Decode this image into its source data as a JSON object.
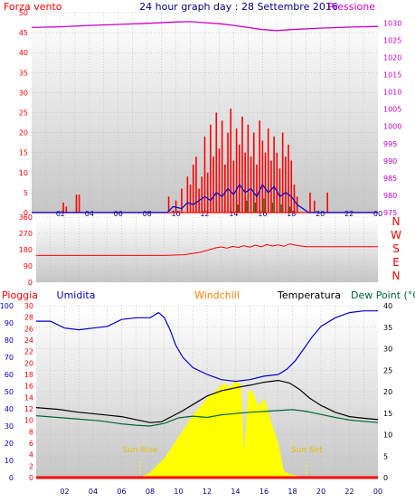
{
  "page_title": "24 hour graph day : 28 Settembre 2016",
  "chart_data": [
    {
      "id": "wind",
      "type": "bar+line",
      "title": "24 hour graph day : 28 Settembre 2016",
      "left_label": "Forza vento",
      "right_label": "Pressione",
      "left_axis": {
        "ticks": [
          0,
          5,
          10,
          15,
          20,
          25,
          30,
          35,
          40,
          45,
          50
        ],
        "ylim": [
          0,
          50
        ]
      },
      "right_axis": {
        "ticks": [
          975,
          980,
          985,
          990,
          995,
          1000,
          1005,
          1010,
          1015,
          1020,
          1025,
          1030
        ],
        "ylim": [
          975,
          1033
        ]
      },
      "x_ticks": [
        "02",
        "04",
        "06",
        "08",
        "10",
        "12",
        "14",
        "16",
        "18",
        "20",
        "22",
        "00"
      ],
      "colors": {
        "gust": "#ff0000",
        "average": "#0000cc",
        "pressure": "#cc00cc",
        "calm": "#008000"
      },
      "gust_bars": [
        {
          "t": 2.2,
          "v": 2.5
        },
        {
          "t": 2.4,
          "v": 1.5
        },
        {
          "t": 3.1,
          "v": 4.5
        },
        {
          "t": 3.3,
          "v": 4.5
        },
        {
          "t": 9.5,
          "v": 4
        },
        {
          "t": 10.0,
          "v": 3
        },
        {
          "t": 10.4,
          "v": 6
        },
        {
          "t": 10.8,
          "v": 9
        },
        {
          "t": 11.0,
          "v": 7
        },
        {
          "t": 11.2,
          "v": 12
        },
        {
          "t": 11.4,
          "v": 14
        },
        {
          "t": 11.6,
          "v": 6
        },
        {
          "t": 11.8,
          "v": 9
        },
        {
          "t": 12.0,
          "v": 19
        },
        {
          "t": 12.2,
          "v": 10
        },
        {
          "t": 12.4,
          "v": 22
        },
        {
          "t": 12.6,
          "v": 14
        },
        {
          "t": 12.8,
          "v": 25
        },
        {
          "t": 13.0,
          "v": 16
        },
        {
          "t": 13.2,
          "v": 23
        },
        {
          "t": 13.4,
          "v": 12
        },
        {
          "t": 13.6,
          "v": 20
        },
        {
          "t": 13.8,
          "v": 26
        },
        {
          "t": 14.0,
          "v": 13
        },
        {
          "t": 14.2,
          "v": 21
        },
        {
          "t": 14.4,
          "v": 17
        },
        {
          "t": 14.6,
          "v": 24
        },
        {
          "t": 14.8,
          "v": 15
        },
        {
          "t": 15.0,
          "v": 22
        },
        {
          "t": 15.2,
          "v": 14
        },
        {
          "t": 15.4,
          "v": 20
        },
        {
          "t": 15.6,
          "v": 12
        },
        {
          "t": 15.8,
          "v": 23
        },
        {
          "t": 16.0,
          "v": 18
        },
        {
          "t": 16.2,
          "v": 15
        },
        {
          "t": 16.4,
          "v": 21
        },
        {
          "t": 16.6,
          "v": 13
        },
        {
          "t": 16.8,
          "v": 19
        },
        {
          "t": 17.0,
          "v": 15
        },
        {
          "t": 17.2,
          "v": 11
        },
        {
          "t": 17.4,
          "v": 20
        },
        {
          "t": 17.6,
          "v": 14
        },
        {
          "t": 17.8,
          "v": 17
        },
        {
          "t": 18.0,
          "v": 13
        },
        {
          "t": 18.2,
          "v": 7
        },
        {
          "t": 18.4,
          "v": 4
        },
        {
          "t": 19.3,
          "v": 5
        },
        {
          "t": 19.6,
          "v": 3
        },
        {
          "t": 20.5,
          "v": 5
        }
      ],
      "average_line": [
        [
          0,
          0
        ],
        [
          9.4,
          0
        ],
        [
          9.8,
          1.5
        ],
        [
          10.4,
          1
        ],
        [
          10.8,
          2.5
        ],
        [
          11.2,
          2
        ],
        [
          11.6,
          3
        ],
        [
          12.0,
          4
        ],
        [
          12.4,
          3
        ],
        [
          12.8,
          5
        ],
        [
          13.2,
          4
        ],
        [
          13.6,
          6
        ],
        [
          14.0,
          4.5
        ],
        [
          14.4,
          7
        ],
        [
          14.8,
          5
        ],
        [
          15.2,
          6
        ],
        [
          15.6,
          4
        ],
        [
          16.0,
          7
        ],
        [
          16.4,
          5
        ],
        [
          16.8,
          6.5
        ],
        [
          17.2,
          4
        ],
        [
          17.6,
          5
        ],
        [
          18.0,
          4
        ],
        [
          18.4,
          2
        ],
        [
          18.8,
          1
        ],
        [
          19.2,
          0
        ],
        [
          24,
          0
        ]
      ],
      "calm_bars": [
        {
          "t": 14.3,
          "v": 2
        },
        {
          "t": 14.9,
          "v": 3
        },
        {
          "t": 15.5,
          "v": 2.5
        },
        {
          "t": 16.1,
          "v": 3.5
        },
        {
          "t": 16.7,
          "v": 2.5
        },
        {
          "t": 17.3,
          "v": 2
        },
        {
          "t": 17.9,
          "v": 1.5
        }
      ],
      "pressure_line": [
        [
          0,
          1028.7
        ],
        [
          2,
          1028.9
        ],
        [
          4,
          1029.3
        ],
        [
          6,
          1029.6
        ],
        [
          8,
          1029.9
        ],
        [
          10,
          1030.3
        ],
        [
          11,
          1030.4
        ],
        [
          12,
          1030.1
        ],
        [
          13,
          1029.8
        ],
        [
          14,
          1029.3
        ],
        [
          15,
          1028.7
        ],
        [
          16,
          1028.1
        ],
        [
          17,
          1027.8
        ],
        [
          18,
          1028.1
        ],
        [
          20,
          1028.5
        ],
        [
          22,
          1028.8
        ],
        [
          24,
          1029.0
        ]
      ]
    },
    {
      "id": "direction",
      "type": "line",
      "left_axis": {
        "ticks": [
          0,
          90,
          180,
          270,
          360
        ],
        "ylim": [
          0,
          360
        ]
      },
      "right_labels": [
        "N",
        "W",
        "S",
        "E",
        "N"
      ],
      "colors": {
        "direction": "#ff0000"
      },
      "direction_line": [
        [
          0,
          148
        ],
        [
          9.0,
          148
        ],
        [
          10.4,
          152
        ],
        [
          11.5,
          165
        ],
        [
          12.2,
          180
        ],
        [
          12.6,
          190
        ],
        [
          13.0,
          195
        ],
        [
          13.4,
          188
        ],
        [
          13.8,
          198
        ],
        [
          14.2,
          192
        ],
        [
          14.6,
          202
        ],
        [
          15.0,
          194
        ],
        [
          15.4,
          205
        ],
        [
          15.8,
          196
        ],
        [
          16.2,
          208
        ],
        [
          16.6,
          200
        ],
        [
          17.0,
          206
        ],
        [
          17.4,
          198
        ],
        [
          17.8,
          212
        ],
        [
          18.2,
          205
        ],
        [
          18.6,
          200
        ],
        [
          19.0,
          196
        ],
        [
          24,
          196
        ]
      ]
    },
    {
      "id": "temperature",
      "type": "line+area",
      "labels": [
        "Pioggia",
        "Umidita",
        "Windchill",
        "Temperatura",
        "Dew Point (°C"
      ],
      "label_colors": [
        "#ff0000",
        "#0000cc",
        "#ff8000",
        "#000000",
        "#006633"
      ],
      "axis_humidity": {
        "ticks": [
          0,
          10,
          20,
          30,
          40,
          50,
          60,
          70,
          80,
          90,
          100
        ],
        "ylim": [
          0,
          100
        ]
      },
      "axis_rain": {
        "ticks": [
          0,
          2,
          4,
          6,
          8,
          10,
          12,
          14,
          16,
          18,
          20,
          22,
          24,
          26,
          28,
          30
        ],
        "ylim": [
          0,
          30
        ]
      },
      "axis_temp": {
        "ticks": [
          0,
          5,
          10,
          15,
          20,
          25,
          30,
          35,
          40
        ],
        "ylim": [
          0,
          40
        ]
      },
      "sun_rise": "Sun Rise",
      "sun_set": "Sun Set",
      "sun_rise_hour": 7.3,
      "sun_set_hour": 19.0,
      "colors": {
        "humidity": "#0000cc",
        "temperature": "#000000",
        "dewpoint": "#006633",
        "rain": "#ff0000",
        "solar": "#ffff00"
      },
      "humidity_line": [
        [
          0,
          91
        ],
        [
          1.0,
          91
        ],
        [
          2.0,
          87
        ],
        [
          3.0,
          86
        ],
        [
          4.0,
          87
        ],
        [
          5.0,
          88
        ],
        [
          6.0,
          92
        ],
        [
          7.0,
          93
        ],
        [
          8.0,
          93
        ],
        [
          8.6,
          96
        ],
        [
          9.0,
          93
        ],
        [
          9.4,
          86
        ],
        [
          9.8,
          77
        ],
        [
          10.3,
          70
        ],
        [
          11.0,
          64
        ],
        [
          12.0,
          60
        ],
        [
          13.0,
          57
        ],
        [
          14.0,
          56
        ],
        [
          15.0,
          57
        ],
        [
          16.0,
          59
        ],
        [
          17.0,
          60
        ],
        [
          17.6,
          63
        ],
        [
          18.2,
          68
        ],
        [
          18.8,
          75
        ],
        [
          19.4,
          82
        ],
        [
          20.0,
          88
        ],
        [
          21.0,
          93
        ],
        [
          22.0,
          96
        ],
        [
          23.0,
          97
        ],
        [
          24,
          97
        ]
      ],
      "temperature_line": [
        [
          0,
          16.3
        ],
        [
          1.5,
          15.9
        ],
        [
          3.0,
          15.2
        ],
        [
          4.5,
          14.7
        ],
        [
          6.0,
          14.2
        ],
        [
          7.0,
          13.5
        ],
        [
          8.0,
          12.8
        ],
        [
          8.8,
          13.0
        ],
        [
          9.5,
          14.2
        ],
        [
          10.2,
          15.4
        ],
        [
          11.0,
          17.0
        ],
        [
          12.0,
          19.0
        ],
        [
          13.0,
          20.2
        ],
        [
          14.0,
          20.9
        ],
        [
          15.0,
          21.5
        ],
        [
          16.0,
          22.2
        ],
        [
          17.0,
          22.6
        ],
        [
          17.8,
          22.0
        ],
        [
          18.5,
          20.5
        ],
        [
          19.2,
          18.5
        ],
        [
          20.0,
          16.8
        ],
        [
          21.0,
          15.2
        ],
        [
          22.0,
          14.2
        ],
        [
          23.0,
          13.8
        ],
        [
          24,
          13.5
        ]
      ],
      "dewpoint_line": [
        [
          0,
          14.4
        ],
        [
          1.5,
          14.0
        ],
        [
          3.0,
          13.6
        ],
        [
          4.5,
          13.2
        ],
        [
          6.0,
          12.5
        ],
        [
          7.0,
          12.2
        ],
        [
          8.0,
          12.0
        ],
        [
          9.0,
          12.6
        ],
        [
          10.0,
          13.9
        ],
        [
          11.0,
          14.3
        ],
        [
          12.0,
          14.0
        ],
        [
          13.0,
          14.6
        ],
        [
          14.0,
          14.9
        ],
        [
          15.0,
          15.2
        ],
        [
          16.0,
          15.4
        ],
        [
          17.0,
          15.6
        ],
        [
          18.0,
          15.8
        ],
        [
          19.0,
          15.4
        ],
        [
          20.0,
          14.7
        ],
        [
          21.0,
          14.0
        ],
        [
          22.0,
          13.4
        ],
        [
          23.0,
          13.1
        ],
        [
          24,
          12.8
        ]
      ],
      "solar_area": [
        [
          7.3,
          0
        ],
        [
          8.0,
          1.2
        ],
        [
          9.0,
          4.5
        ],
        [
          10.0,
          9.5
        ],
        [
          11.0,
          14.5
        ],
        [
          12.0,
          18.5
        ],
        [
          12.8,
          20.8
        ],
        [
          13.2,
          22.0
        ],
        [
          13.6,
          21.0
        ],
        [
          14.0,
          22.5
        ],
        [
          14.4,
          21.5
        ],
        [
          14.6,
          6.0
        ],
        [
          14.9,
          20.5
        ],
        [
          15.2,
          20.0
        ],
        [
          15.6,
          16.5
        ],
        [
          16.0,
          18.5
        ],
        [
          16.6,
          12.0
        ],
        [
          17.0,
          8.0
        ],
        [
          17.4,
          1.5
        ],
        [
          17.8,
          0.8
        ],
        [
          18.5,
          0.3
        ],
        [
          19.0,
          0
        ]
      ],
      "rain_line": [
        [
          0,
          0
        ],
        [
          24,
          0
        ]
      ]
    }
  ]
}
